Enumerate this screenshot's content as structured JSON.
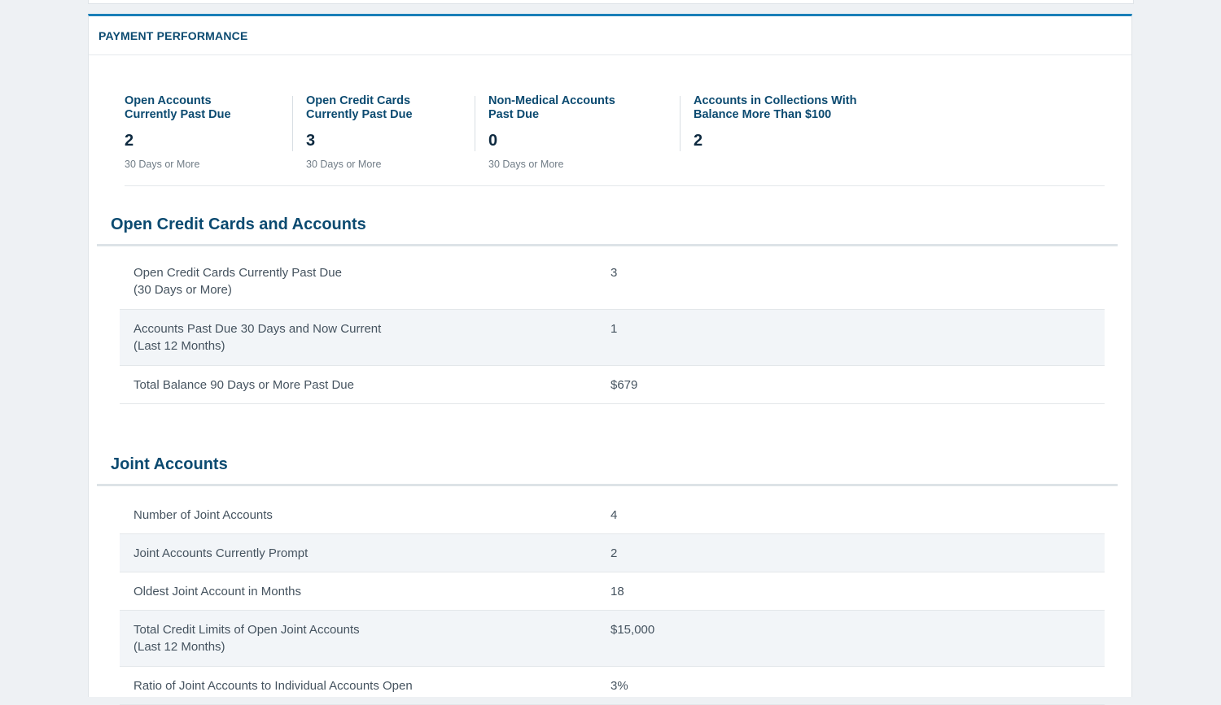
{
  "card": {
    "title": "PAYMENT PERFORMANCE"
  },
  "stats": [
    {
      "label": "Open Accounts\nCurrently Past Due",
      "value": "2",
      "sub": "30 Days or More"
    },
    {
      "label": "Open Credit Cards\nCurrently Past Due",
      "value": "3",
      "sub": "30 Days or More"
    },
    {
      "label": "Non-Medical Accounts\nPast Due",
      "value": "0",
      "sub": "30 Days or More"
    },
    {
      "label": "Accounts in Collections With\nBalance More Than $100",
      "value": "2",
      "sub": ""
    }
  ],
  "open_credit": {
    "title": "Open Credit Cards and Accounts",
    "rows": [
      {
        "label": "Open Credit Cards Currently Past Due\n(30 Days or More)",
        "value": "3"
      },
      {
        "label": "Accounts Past Due 30 Days and Now Current\n(Last 12 Months)",
        "value": "1"
      },
      {
        "label": "Total Balance 90 Days or More Past Due",
        "value": "$679"
      }
    ]
  },
  "joint": {
    "title": "Joint Accounts",
    "rows": [
      {
        "label": "Number of Joint Accounts",
        "value": "4"
      },
      {
        "label": "Joint Accounts Currently Prompt",
        "value": "2"
      },
      {
        "label": "Oldest Joint Account in Months",
        "value": "18"
      },
      {
        "label": "Total Credit Limits of Open Joint Accounts\n(Last 12 Months)",
        "value": "$15,000"
      },
      {
        "label": "Ratio of Joint Accounts to Individual Accounts Open",
        "value": "3%"
      }
    ]
  }
}
